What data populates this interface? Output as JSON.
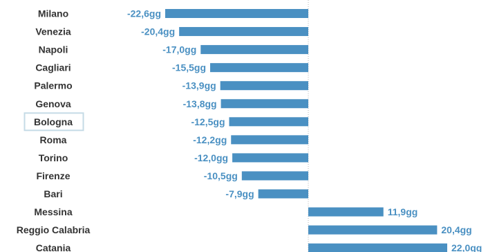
{
  "chart_data": {
    "type": "bar",
    "orientation": "horizontal",
    "categories": [
      "Milano",
      "Venezia",
      "Napoli",
      "Cagliari",
      "Palermo",
      "Genova",
      "Bologna",
      "Roma",
      "Torino",
      "Firenze",
      "Bari",
      "Messina",
      "Reggio Calabria",
      "Catania"
    ],
    "values": [
      -22.6,
      -20.4,
      -17.0,
      -15.5,
      -13.9,
      -13.8,
      -12.5,
      -12.2,
      -12.0,
      -10.5,
      -7.9,
      11.9,
      20.4,
      22.0
    ],
    "value_labels": [
      "-22,6gg",
      "-20,4gg",
      "-17,0gg",
      "-15,5gg",
      "-13,9gg",
      "-13,8gg",
      "-12,5gg",
      "-12,2gg",
      "-12,0gg",
      "-10,5gg",
      "-7,9gg",
      "11,9gg",
      "20,4gg",
      "22,0gg"
    ],
    "highlighted_category": "Bologna",
    "xlim": [
      -22.6,
      22.0
    ],
    "zero_line": "dotted",
    "grid": false,
    "bar_color": "#4a90c2",
    "label_color": "#4a90c2",
    "category_label_color": "#333333",
    "highlight_border_color": "#c5dbe6"
  }
}
